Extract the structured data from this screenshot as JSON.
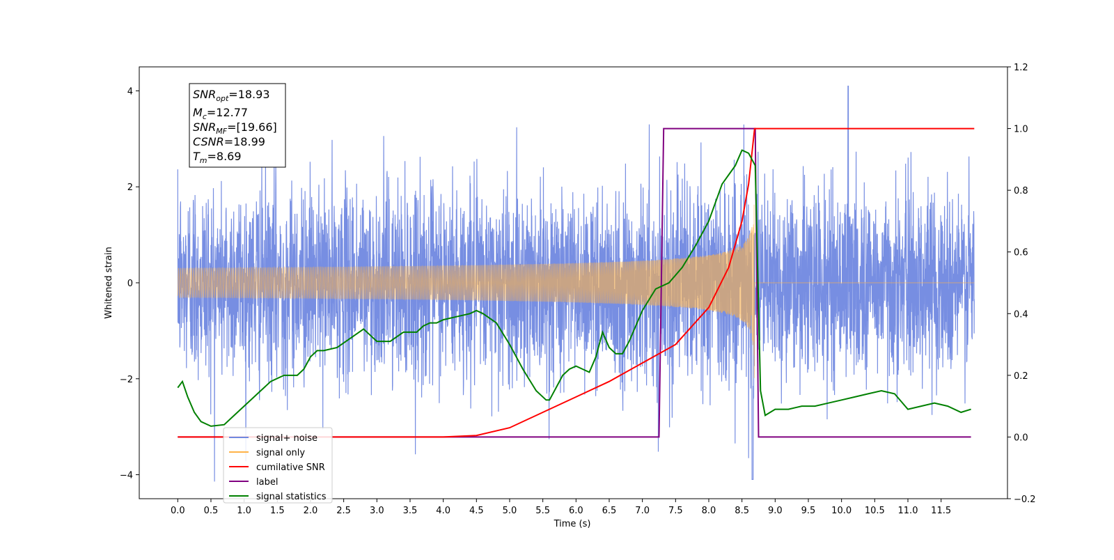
{
  "chart_data": {
    "type": "line",
    "xlabel": "Time (s)",
    "ylabel": "Whitened strain",
    "xlim": [
      -0.58,
      12.5
    ],
    "ylim": [
      -4.5,
      4.5
    ],
    "y2lim": [
      -0.2,
      1.2
    ],
    "x_ticks": [
      "0.0",
      "0.5",
      "1.0",
      "1.5",
      "2.0",
      "2.5",
      "3.0",
      "3.5",
      "4.0",
      "4.5",
      "5.0",
      "5.5",
      "6.0",
      "6.5",
      "7.0",
      "7.5",
      "8.0",
      "8.5",
      "9.0",
      "9.5",
      "10.0",
      "10.5",
      "11.0",
      "11.5"
    ],
    "y_ticks": [
      "4",
      "2",
      "0",
      "−2",
      "−4"
    ],
    "y2_ticks": [
      "1.2",
      "1.0",
      "0.8",
      "0.6",
      "0.4",
      "0.2",
      "0.0",
      "−0.2"
    ],
    "grid": false,
    "legend_placement": "lower-left",
    "annotations": {
      "snr_opt": {
        "sym": "SNR",
        "sub": "opt",
        "value": "=18.93"
      },
      "mc": {
        "sym": "M",
        "sub": "c",
        "value": "=12.77"
      },
      "snr_mf": {
        "sym": "SNR",
        "sub": "MF",
        "value": "=[19.66]"
      },
      "csnr": {
        "sym": "CSNR",
        "value": "=18.99"
      },
      "tm": {
        "sym": "T",
        "sub": "m",
        "value": "=8.69"
      }
    },
    "series": [
      {
        "name": "signal+ noise",
        "color": "#7088e0",
        "axis": "left",
        "description_values": {
          "x_range": [
            0.0,
            12.0
          ],
          "sigma": 1.0,
          "envelope_peak_at": 8.69,
          "spike_max": 4.1,
          "spike_min": -4.1
        }
      },
      {
        "name": "signal only",
        "color": "#ffb347",
        "axis": "left",
        "chirp": {
          "t_start": 0.0,
          "t_merge": 8.69,
          "peak_amplitude": 2.1
        }
      },
      {
        "name": "cumilative SNR",
        "color": "#ff0000",
        "axis": "right",
        "x": [
          0.0,
          4.0,
          4.5,
          5.0,
          5.5,
          6.0,
          6.5,
          7.0,
          7.5,
          8.0,
          8.3,
          8.5,
          8.6,
          8.69,
          12.0
        ],
        "y": [
          0.0,
          0.0,
          0.005,
          0.03,
          0.08,
          0.13,
          0.18,
          0.24,
          0.3,
          0.42,
          0.55,
          0.7,
          0.82,
          1.0,
          1.0
        ]
      },
      {
        "name": "label",
        "color": "#800080",
        "axis": "right",
        "x": [
          0.0,
          7.25,
          7.32,
          8.7,
          8.75,
          11.95
        ],
        "y": [
          0.0,
          0.0,
          1.0,
          1.0,
          0.0,
          0.0
        ]
      },
      {
        "name": "signal statistics",
        "color": "#008000",
        "axis": "right",
        "x": [
          0.0,
          0.07,
          0.15,
          0.25,
          0.35,
          0.5,
          0.7,
          0.85,
          1.0,
          1.2,
          1.4,
          1.6,
          1.8,
          1.9,
          2.0,
          2.1,
          2.2,
          2.4,
          2.6,
          2.8,
          2.9,
          3.0,
          3.2,
          3.4,
          3.6,
          3.7,
          3.8,
          3.9,
          4.0,
          4.2,
          4.4,
          4.5,
          4.6,
          4.8,
          5.0,
          5.2,
          5.4,
          5.55,
          5.6,
          5.7,
          5.8,
          5.9,
          6.0,
          6.1,
          6.2,
          6.3,
          6.4,
          6.5,
          6.6,
          6.7,
          6.8,
          7.0,
          7.2,
          7.4,
          7.6,
          7.8,
          8.0,
          8.2,
          8.3,
          8.4,
          8.5,
          8.6,
          8.7,
          8.78,
          8.85,
          9.0,
          9.2,
          9.4,
          9.6,
          9.8,
          10.0,
          10.2,
          10.4,
          10.6,
          10.8,
          11.0,
          11.2,
          11.4,
          11.6,
          11.8,
          11.95
        ],
        "y": [
          0.16,
          0.18,
          0.13,
          0.08,
          0.05,
          0.035,
          0.04,
          0.07,
          0.1,
          0.14,
          0.18,
          0.2,
          0.2,
          0.22,
          0.26,
          0.28,
          0.28,
          0.29,
          0.32,
          0.35,
          0.33,
          0.31,
          0.31,
          0.34,
          0.34,
          0.36,
          0.37,
          0.37,
          0.38,
          0.39,
          0.4,
          0.41,
          0.4,
          0.37,
          0.3,
          0.22,
          0.15,
          0.12,
          0.12,
          0.16,
          0.2,
          0.22,
          0.23,
          0.22,
          0.21,
          0.26,
          0.34,
          0.29,
          0.27,
          0.27,
          0.31,
          0.41,
          0.48,
          0.5,
          0.55,
          0.62,
          0.7,
          0.82,
          0.85,
          0.88,
          0.93,
          0.92,
          0.88,
          0.15,
          0.07,
          0.09,
          0.09,
          0.1,
          0.1,
          0.11,
          0.12,
          0.13,
          0.14,
          0.15,
          0.14,
          0.09,
          0.1,
          0.11,
          0.1,
          0.08,
          0.09
        ]
      }
    ]
  }
}
